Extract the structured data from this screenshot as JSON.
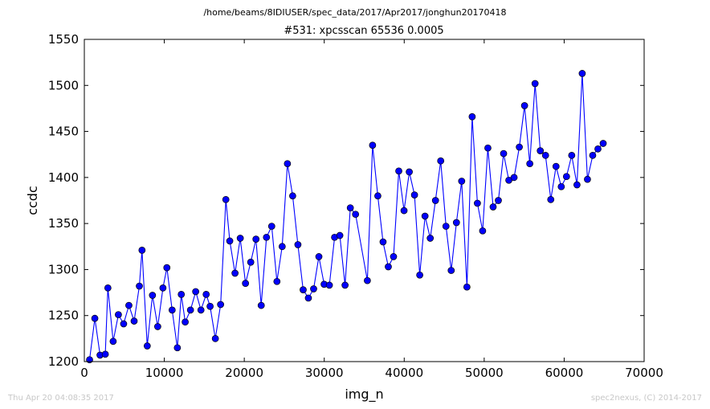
{
  "header": {
    "path": "/home/beams/8IDIUSER/spec_data/2017/Apr2017/jonghun20170418",
    "scan_title": "#531: xpcsscan 65536 0.0005"
  },
  "footer": {
    "timestamp": "Thu Apr 20 04:08:35 2017",
    "credit": "spec2nexus, (C) 2014-2017"
  },
  "chart_data": {
    "type": "line",
    "title": "#531: xpcsscan 65536 0.0005",
    "xlabel": "img_n",
    "ylabel": "ccdc",
    "xlim": [
      0,
      70000
    ],
    "ylim": [
      1200,
      1550
    ],
    "xticks": [
      0,
      10000,
      20000,
      30000,
      40000,
      50000,
      60000,
      70000
    ],
    "yticks": [
      1200,
      1250,
      1300,
      1350,
      1400,
      1450,
      1500,
      1550
    ],
    "grid": false,
    "legend": "none",
    "line_color": "#0000ff",
    "marker_color": "#0000ff",
    "series": [
      {
        "x": [
          655,
          1311,
          1966,
          2621,
          2946,
          3604,
          4258,
          4915,
          5569,
          6226,
          6880,
          7213,
          7866,
          8520,
          9176,
          9831,
          10321,
          10979,
          11633,
          12123,
          12614,
          13272,
          13925,
          14581,
          15235,
          15726,
          16383,
          17039,
          17696,
          18184,
          18843,
          19498,
          20152,
          20807,
          21463,
          22119,
          22775,
          23429,
          24085,
          24740,
          25396,
          26050,
          26707,
          27362,
          28016,
          28672,
          29329,
          29985,
          30640,
          31294,
          31949,
          32603,
          33260,
          33914,
          35390,
          36043,
          36700,
          37354,
          38010,
          38664,
          39321,
          39977,
          40632,
          41286,
          41942,
          42598,
          43254,
          43909,
          44563,
          45219,
          45873,
          46529,
          47185,
          47841,
          48496,
          49150,
          49805,
          50461,
          51117,
          51771,
          52427,
          53081,
          53738,
          54393,
          55048,
          55703,
          56360,
          57015,
          57671,
          58325,
          58980,
          59636,
          60291,
          60945,
          61602,
          62257,
          62912,
          63568,
          64224,
          64878
        ],
        "y": [
          1202,
          1247,
          1207,
          1208,
          1280,
          1222,
          1251,
          1241,
          1261,
          1244,
          1282,
          1321,
          1217,
          1272,
          1238,
          1280,
          1302,
          1256,
          1215,
          1273,
          1243,
          1256,
          1276,
          1256,
          1273,
          1260,
          1225,
          1262,
          1376,
          1331,
          1296,
          1334,
          1285,
          1308,
          1333,
          1261,
          1335,
          1347,
          1287,
          1325,
          1415,
          1380,
          1327,
          1278,
          1269,
          1279,
          1314,
          1284,
          1283,
          1335,
          1337,
          1283,
          1367,
          1360,
          1288,
          1435,
          1380,
          1330,
          1303,
          1314,
          1407,
          1364,
          1406,
          1381,
          1294,
          1358,
          1334,
          1375,
          1418,
          1347,
          1299,
          1351,
          1396,
          1281,
          1466,
          1372,
          1342,
          1432,
          1368,
          1375,
          1426,
          1397,
          1400,
          1433,
          1478,
          1415,
          1502,
          1429,
          1424,
          1376,
          1412,
          1390,
          1401,
          1424,
          1392,
          1513,
          1398,
          1424,
          1431,
          1437
        ]
      }
    ]
  }
}
